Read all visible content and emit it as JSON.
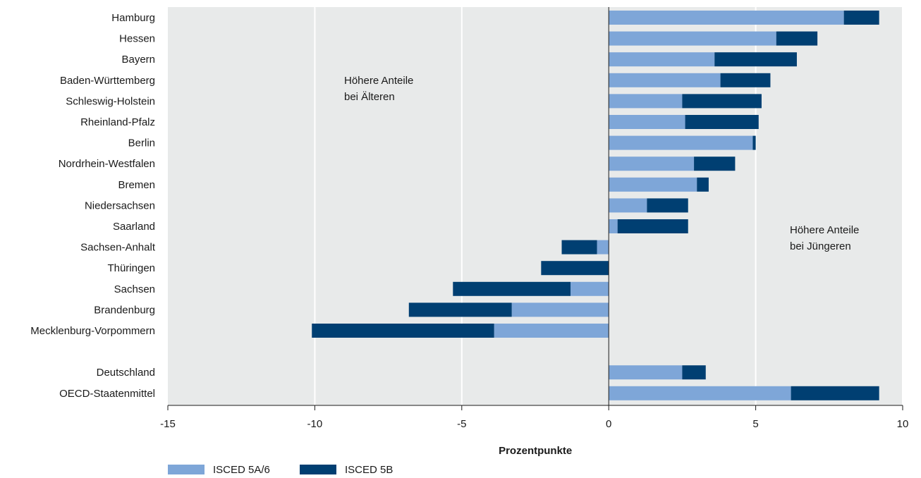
{
  "chart_data": {
    "type": "bar",
    "orientation": "horizontal",
    "stacked": true,
    "categories": [
      "Hamburg",
      "Hessen",
      "Bayern",
      "Baden-Württemberg",
      "Schleswig-Holstein",
      "Rheinland-Pfalz",
      "Berlin",
      "Nordrhein-Westfalen",
      "Bremen",
      "Niedersachsen",
      "Saarland",
      "Sachsen-Anhalt",
      "Thüringen",
      "Sachsen",
      "Brandenburg",
      "Mecklenburg-Vorpommern",
      "",
      "Deutschland",
      "OECD-Staatenmittel"
    ],
    "series": [
      {
        "name": "ISCED 5A/6",
        "color": "#7ea6d8",
        "values": [
          8.0,
          5.7,
          3.6,
          3.8,
          2.5,
          2.6,
          4.9,
          2.9,
          3.0,
          1.3,
          0.3,
          -0.4,
          0.0,
          -1.3,
          -3.3,
          -3.9,
          null,
          2.5,
          6.2
        ]
      },
      {
        "name": "ISCED 5B",
        "color": "#003f72",
        "values": [
          1.2,
          1.4,
          2.8,
          1.7,
          2.7,
          2.5,
          0.1,
          1.4,
          0.4,
          1.4,
          2.4,
          -1.2,
          -2.3,
          -4.0,
          -3.5,
          -6.2,
          null,
          0.8,
          3.0
        ]
      }
    ],
    "xlim": [
      -15,
      10
    ],
    "xticks": [
      -15,
      -10,
      -5,
      0,
      5,
      10
    ],
    "xtick_labels": [
      "-15",
      "-10",
      "-5",
      "0",
      "5",
      "10"
    ],
    "xlabel": "Prozentpunkte",
    "grid": true,
    "legend_position": "bottom-left",
    "annotations": [
      {
        "lines": [
          "Höhere Anteile",
          "bei Älteren"
        ]
      },
      {
        "lines": [
          "Höhere Anteile",
          "bei Jüngeren"
        ]
      }
    ]
  }
}
